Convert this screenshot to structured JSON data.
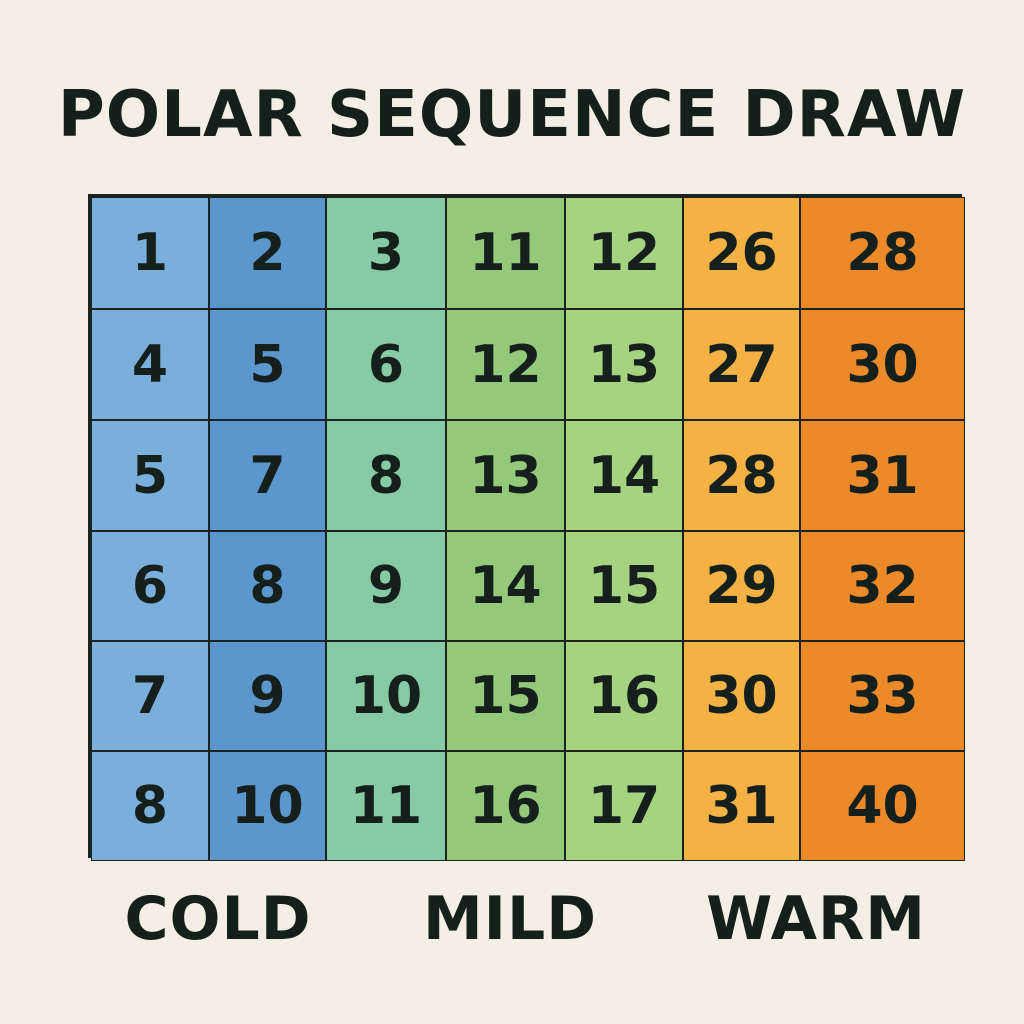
{
  "title": "POLAR SEQUENCE DRAW",
  "column_colors": [
    "#7aaedb",
    "#5b97cc",
    "#86cba6",
    "#94c97a",
    "#a6d37f",
    "#f4b244",
    "#ec8a2a"
  ],
  "rows": [
    [
      "1",
      "2",
      "3",
      "11",
      "12",
      "26",
      "28"
    ],
    [
      "4",
      "5",
      "6",
      "12",
      "13",
      "27",
      "30"
    ],
    [
      "5",
      "7",
      "8",
      "13",
      "14",
      "28",
      "31"
    ],
    [
      "6",
      "8",
      "9",
      "14",
      "15",
      "29",
      "32"
    ],
    [
      "7",
      "9",
      "10",
      "15",
      "16",
      "30",
      "33"
    ],
    [
      "8",
      "10",
      "11",
      "16",
      "17",
      "31",
      "40"
    ]
  ],
  "group_labels": [
    "COLD",
    "MILD",
    "WARM"
  ]
}
